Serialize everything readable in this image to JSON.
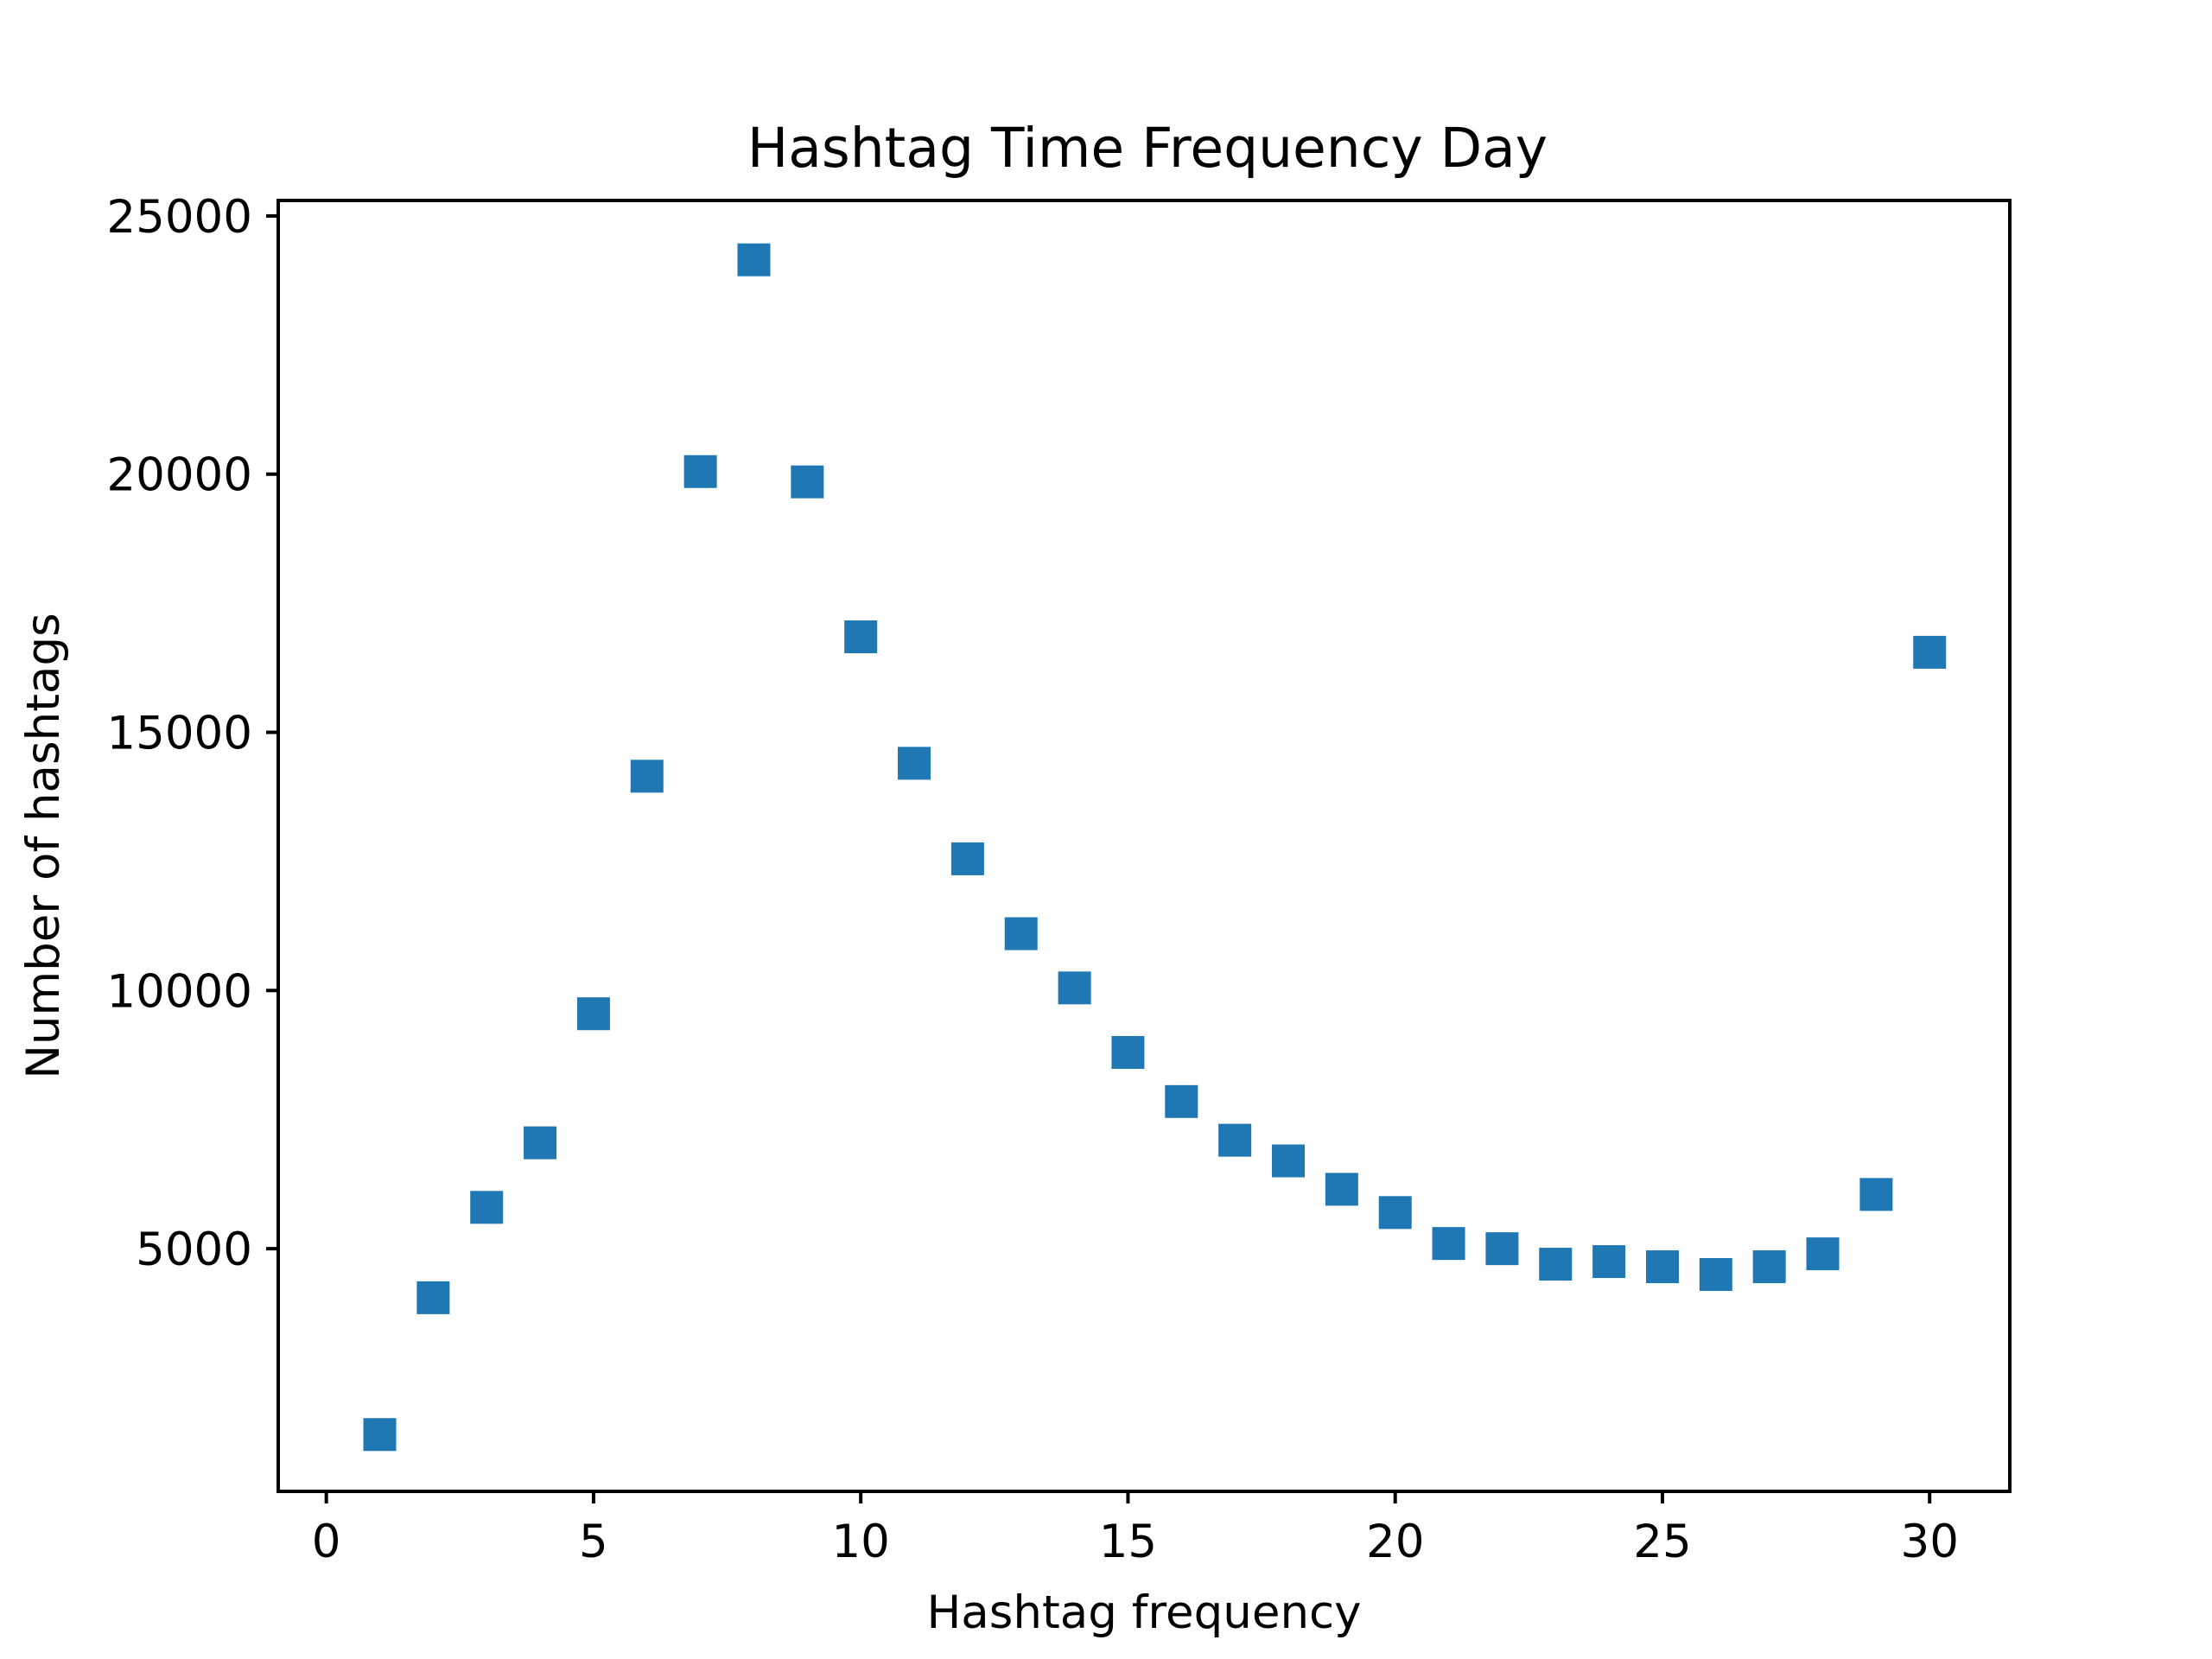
{
  "chart_data": {
    "type": "scatter",
    "title": "Hashtag Time Frequency Day",
    "xlabel": "Hashtag frequency",
    "ylabel": "Number of hashtags",
    "xlim": [
      -0.9,
      31.5
    ],
    "ylim": [
      300,
      25300
    ],
    "xticks": [
      0,
      5,
      10,
      15,
      20,
      25,
      30
    ],
    "yticks": [
      5000,
      10000,
      15000,
      20000,
      25000
    ],
    "xtick_labels": [
      "0",
      "5",
      "10",
      "15",
      "20",
      "25",
      "30"
    ],
    "ytick_labels": [
      "5000",
      "10000",
      "15000",
      "20000",
      "25000"
    ],
    "grid": false,
    "marker": "square",
    "color": "#1f77b4",
    "series": [
      {
        "x": [
          1,
          2,
          3,
          4,
          5,
          6,
          7,
          8,
          9,
          10,
          11,
          12,
          13,
          14,
          15,
          16,
          17,
          18,
          19,
          20,
          21,
          22,
          23,
          24,
          25,
          26,
          27,
          28,
          29,
          30
        ],
        "y": [
          1400,
          4050,
          5800,
          7050,
          9550,
          14150,
          20050,
          24150,
          19850,
          16850,
          14400,
          12550,
          11100,
          10050,
          8800,
          7850,
          7100,
          6700,
          6150,
          5700,
          5100,
          5000,
          4700,
          4750,
          4650,
          4500,
          4650,
          4900,
          6050,
          16550
        ]
      }
    ]
  }
}
